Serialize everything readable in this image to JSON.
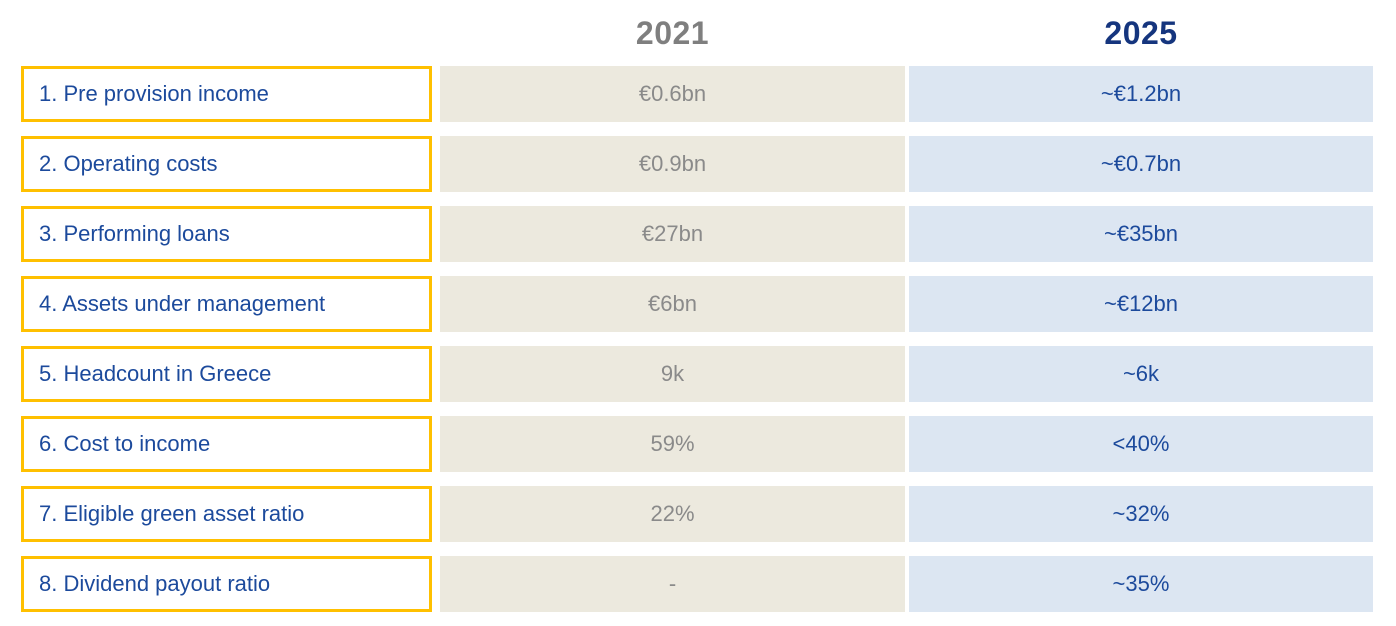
{
  "chart_data": {
    "type": "table",
    "title": "",
    "columns": [
      "2021",
      "2025"
    ],
    "rows": [
      {
        "label": "1. Pre provision income",
        "values": [
          "€0.6bn",
          "~€1.2bn"
        ]
      },
      {
        "label": "2. Operating costs",
        "values": [
          "€0.9bn",
          "~€0.7bn"
        ]
      },
      {
        "label": "3. Performing loans",
        "values": [
          "€27bn",
          "~€35bn"
        ]
      },
      {
        "label": "4. Assets under management",
        "values": [
          "€6bn",
          "~€12bn"
        ]
      },
      {
        "label": "5. Headcount in Greece",
        "values": [
          "9k",
          "~6k"
        ]
      },
      {
        "label": "6. Cost to income",
        "values": [
          "59%",
          "<40%"
        ]
      },
      {
        "label": "7. Eligible green asset ratio",
        "values": [
          "22%",
          "~32%"
        ]
      },
      {
        "label": "8. Dividend payout ratio",
        "values": [
          "-",
          "~35%"
        ]
      }
    ],
    "layout": {
      "legend": "none",
      "grid": false,
      "column_2021_style": "gray-on-beige",
      "column_2025_style": "navy-on-lightblue"
    }
  },
  "colors": {
    "label_border_gold": "#ffc000",
    "label_text_navy": "#1c4a9c",
    "header_2021_gray": "#7f7f7f",
    "header_2025_navy": "#15357e",
    "cell_2021_bg": "#ece9de",
    "cell_2021_text": "#8a8a8a",
    "cell_2025_bg": "#dce6f2",
    "cell_2025_text": "#1c4a9c"
  }
}
